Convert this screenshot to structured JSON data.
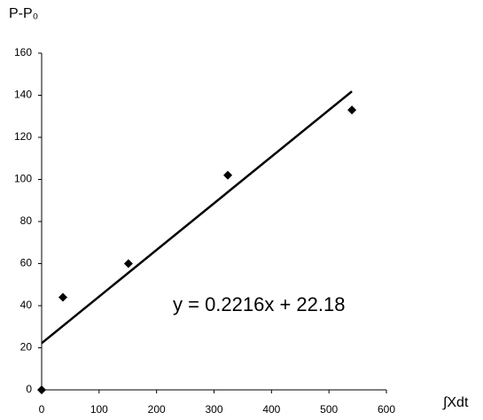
{
  "chart_data": {
    "type": "scatter",
    "y_label": "P-P₀",
    "x_label": "∫Xdt",
    "x": [
      0,
      37,
      151,
      324,
      540
    ],
    "values": [
      0,
      44,
      60,
      102,
      133
    ],
    "color": "#000000",
    "trendline": {
      "equation": "y = 0.2216x + 22.18",
      "slope": 0.2216,
      "intercept": 22.18,
      "x": [
        0,
        540
      ]
    },
    "xlim": [
      0,
      600
    ],
    "xticks": [
      0,
      100,
      200,
      300,
      400,
      500,
      600
    ],
    "ylim": [
      0,
      160
    ],
    "yticks": [
      0,
      20,
      40,
      60,
      80,
      100,
      120,
      140,
      160
    ]
  }
}
